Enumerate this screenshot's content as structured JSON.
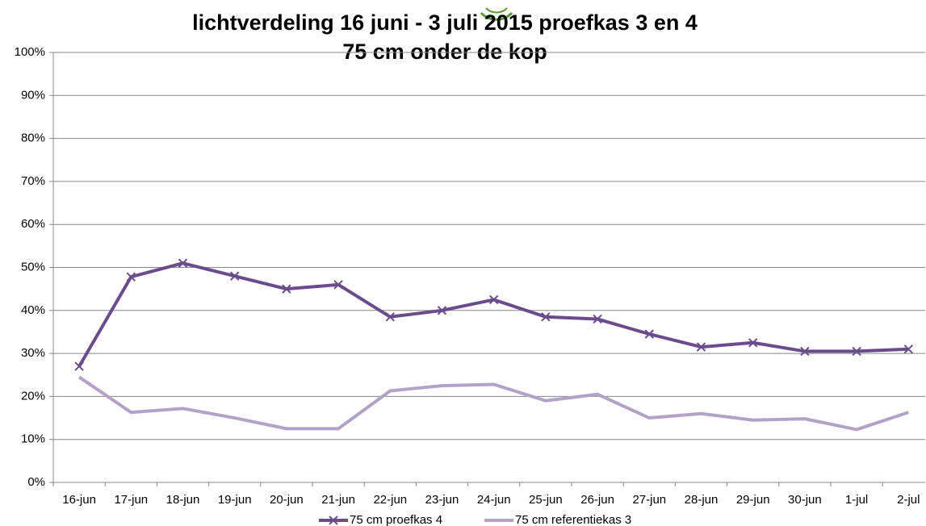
{
  "chart_data": {
    "type": "line",
    "title": "lichtverdeling 16 juni - 3 juli 2015   proefkas 3 en 4",
    "subtitle": "75 cm onder de kop",
    "categories": [
      "16-jun",
      "17-jun",
      "18-jun",
      "19-jun",
      "20-jun",
      "21-jun",
      "22-jun",
      "23-jun",
      "24-jun",
      "25-jun",
      "26-jun",
      "27-jun",
      "28-jun",
      "29-jun",
      "30-jun",
      "1-jul",
      "2-jul"
    ],
    "series": [
      {
        "name": "75 cm  proefkas 4",
        "color": "#6a4c8c",
        "marker": "x",
        "values": [
          27,
          47.8,
          51,
          48,
          45,
          46,
          38.5,
          40,
          42.5,
          38.5,
          38,
          34.5,
          31.5,
          32.5,
          30.5,
          30.5,
          31
        ]
      },
      {
        "name": "75 cm referentiekas 3",
        "color": "#b3a2c8",
        "values": [
          24.5,
          16.3,
          17.2,
          15,
          12.5,
          12.5,
          21.3,
          22.5,
          22.8,
          19,
          20.5,
          15,
          16,
          14.5,
          14.8,
          12.3,
          16.3
        ]
      }
    ],
    "ylim": [
      0,
      100
    ],
    "yticks": [
      {
        "value": 0,
        "label": "0%"
      },
      {
        "value": 10,
        "label": "10%"
      },
      {
        "value": 20,
        "label": "20%"
      },
      {
        "value": 30,
        "label": "30%"
      },
      {
        "value": 40,
        "label": "40%"
      },
      {
        "value": 50,
        "label": "50%"
      },
      {
        "value": 60,
        "label": "60%"
      },
      {
        "value": 70,
        "label": "70%"
      },
      {
        "value": 80,
        "label": "80%"
      },
      {
        "value": 90,
        "label": "90%"
      },
      {
        "value": 100,
        "label": "100%"
      }
    ],
    "grid": true,
    "legend": "bottom"
  }
}
